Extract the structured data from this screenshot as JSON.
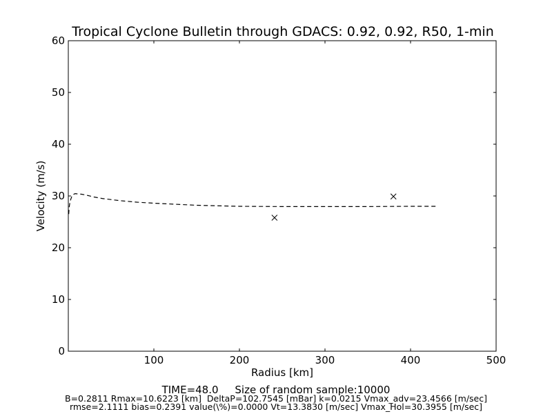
{
  "chart_data": {
    "type": "line",
    "title": "Tropical Cyclone Bulletin through GDACS: 0.92, 0.92, R50, 1-min",
    "xlabel": "Radius [km]",
    "ylabel": "Velocity (m/s)",
    "xlim": [
      0,
      500
    ],
    "ylim": [
      0,
      60
    ],
    "xticks": [
      100,
      200,
      300,
      400,
      500
    ],
    "yticks": [
      0,
      10,
      20,
      30,
      40,
      50,
      60
    ],
    "grid": false,
    "series": [
      {
        "style": "dashed-line",
        "x": [
          0.5,
          1,
          2,
          4,
          6,
          8,
          10.6,
          15,
          20,
          30,
          40,
          60,
          80,
          100,
          125,
          150,
          175,
          200,
          250,
          300,
          350,
          400,
          430
        ],
        "y": [
          26.5,
          27.8,
          28.9,
          29.9,
          30.3,
          30.45,
          30.4,
          30.35,
          30.2,
          29.8,
          29.5,
          29.1,
          28.8,
          28.6,
          28.4,
          28.2,
          28.1,
          28.0,
          27.95,
          27.95,
          27.95,
          28.0,
          28.0
        ]
      },
      {
        "style": "x-markers",
        "x": [
          241,
          380
        ],
        "y": [
          25.8,
          29.9
        ]
      }
    ]
  },
  "footer": {
    "time_line": "TIME=48.0     Size of random sample:10000",
    "params_line": "B=0.2811 Rmax=10.6223 [km]  DeltaP=102.7545 [mBar] k=0.0215 Vmax_adv=23.4566 [m/sec]",
    "stats_line": "rmse=2.1111 bias=0.2391 value(\\%)=0.0000 Vt=13.3830 [m/sec] Vmax_Hol=30.3955 [m/sec]"
  }
}
